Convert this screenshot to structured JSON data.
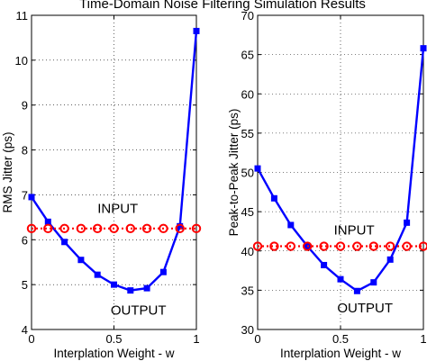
{
  "title": "Time-Domain Noise Filtering Simulation Results",
  "chart_data": [
    {
      "type": "line",
      "xlabel": "Interplation Weight - w",
      "ylabel": "RMS Jitter (ps)",
      "xlim": [
        0,
        1
      ],
      "ylim": [
        4,
        11
      ],
      "xticks": [
        0,
        0.5,
        1
      ],
      "xtick_labels": [
        "0",
        "0.5",
        "1"
      ],
      "yticks": [
        4,
        5,
        6,
        7,
        8,
        9,
        10,
        11
      ],
      "ytick_labels": [
        "4",
        "5",
        "6",
        "7",
        "8",
        "9",
        "10",
        "11"
      ],
      "grid": true,
      "series": [
        {
          "name": "OUTPUT",
          "color": "#0000ff",
          "marker": "square",
          "x": [
            0,
            0.1,
            0.2,
            0.3,
            0.4,
            0.5,
            0.6,
            0.7,
            0.8,
            0.9,
            1.0
          ],
          "y": [
            6.95,
            6.4,
            5.95,
            5.55,
            5.22,
            5.0,
            4.87,
            4.92,
            5.28,
            6.3,
            10.65
          ]
        },
        {
          "name": "INPUT",
          "color": "#ff0000",
          "marker": "circle",
          "x": [
            0,
            0.1,
            0.2,
            0.3,
            0.4,
            0.5,
            0.6,
            0.7,
            0.8,
            0.9,
            1.0
          ],
          "y": [
            6.25,
            6.25,
            6.25,
            6.25,
            6.25,
            6.25,
            6.25,
            6.25,
            6.25,
            6.25,
            6.25
          ]
        }
      ],
      "annotations": [
        {
          "text": "INPUT",
          "x": 0.4,
          "y": 6.6
        },
        {
          "text": "OUTPUT",
          "x": 0.48,
          "y": 4.33
        }
      ]
    },
    {
      "type": "line",
      "xlabel": "Interplation Weight - w",
      "ylabel": "Peak-to-Peak Jitter (ps)",
      "xlim": [
        0,
        1
      ],
      "ylim": [
        30,
        70
      ],
      "xticks": [
        0,
        0.5,
        1
      ],
      "xtick_labels": [
        "0",
        "0.5",
        "1"
      ],
      "yticks": [
        30,
        35,
        40,
        45,
        50,
        55,
        60,
        65,
        70
      ],
      "ytick_labels": [
        "30",
        "35",
        "40",
        "45",
        "50",
        "55",
        "60",
        "65",
        "70"
      ],
      "grid": true,
      "series": [
        {
          "name": "OUTPUT",
          "color": "#0000ff",
          "marker": "square",
          "x": [
            0,
            0.1,
            0.2,
            0.3,
            0.4,
            0.5,
            0.6,
            0.7,
            0.8,
            0.9,
            1.0
          ],
          "y": [
            50.5,
            46.7,
            43.3,
            40.6,
            38.2,
            36.4,
            34.9,
            36.0,
            38.9,
            43.6,
            65.8
          ]
        },
        {
          "name": "INPUT",
          "color": "#ff0000",
          "marker": "circle",
          "x": [
            0,
            0.1,
            0.2,
            0.3,
            0.4,
            0.5,
            0.6,
            0.7,
            0.8,
            0.9,
            1.0
          ],
          "y": [
            40.6,
            40.6,
            40.6,
            40.6,
            40.6,
            40.6,
            40.6,
            40.6,
            40.6,
            40.6,
            40.6
          ]
        }
      ],
      "annotations": [
        {
          "text": "INPUT",
          "x": 0.46,
          "y": 42.1
        },
        {
          "text": "OUTPUT",
          "x": 0.48,
          "y": 32.2
        }
      ]
    }
  ]
}
